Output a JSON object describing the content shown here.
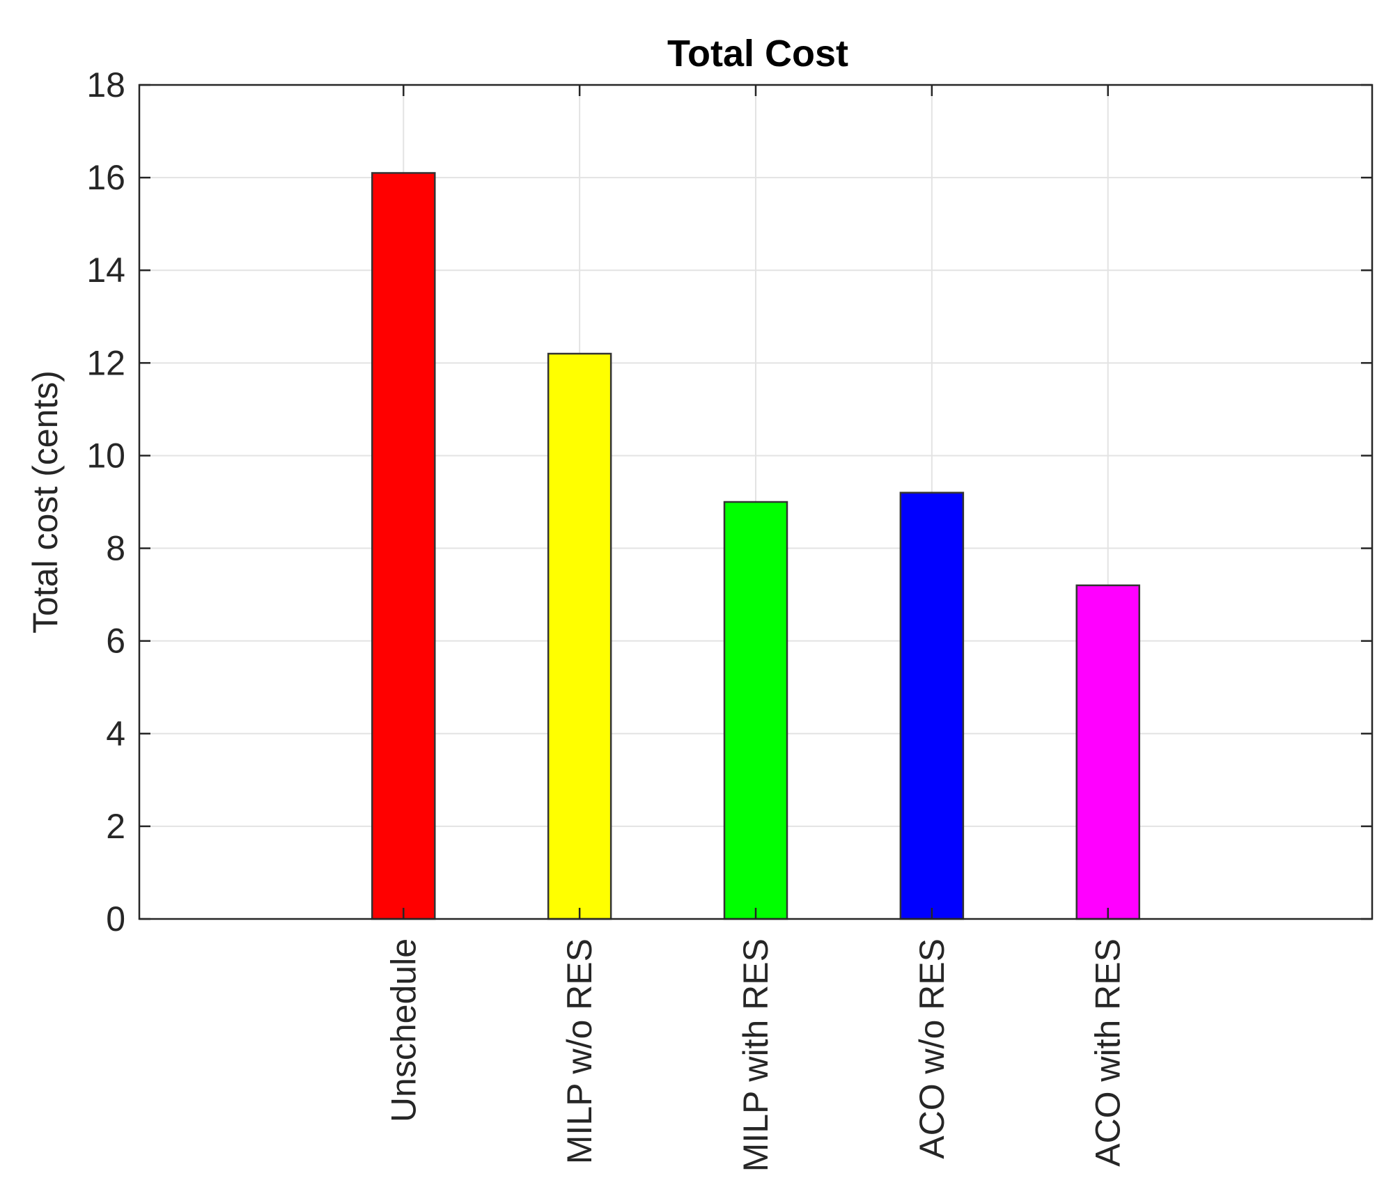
{
  "chart_data": {
    "type": "bar",
    "title": "Total Cost",
    "xlabel": "",
    "ylabel": "Total cost (cents)",
    "categories": [
      "Unschedule",
      "MILP w/o RES",
      "MILP with RES",
      "ACO w/o RES",
      "ACO with RES"
    ],
    "values": [
      16.1,
      12.2,
      9.0,
      9.2,
      7.2
    ],
    "colors": [
      "#ff0000",
      "#ffff00",
      "#00ff00",
      "#0000ff",
      "#ff00ff"
    ],
    "ylim": [
      0,
      18
    ],
    "yticks": [
      "0",
      "2",
      "4",
      "6",
      "8",
      "10",
      "12",
      "14",
      "16",
      "18"
    ],
    "grid": true,
    "legend": "none"
  }
}
